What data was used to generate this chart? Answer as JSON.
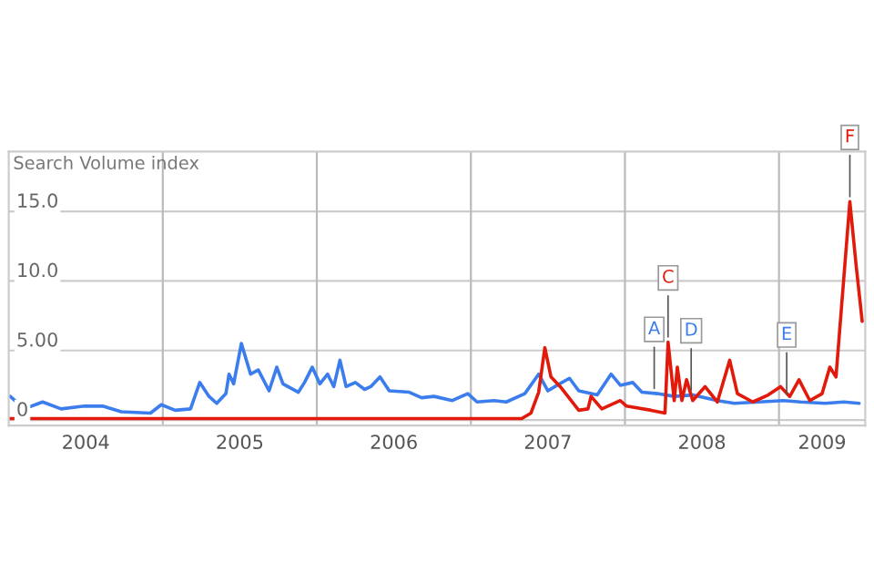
{
  "chart_data": {
    "type": "line",
    "ylabel": "Search Volume index",
    "x": [
      2004.01,
      2004.1,
      2004.22,
      2004.34,
      2004.49,
      2004.61,
      2004.73,
      2004.92,
      2004.99,
      2005.08,
      2005.18,
      2005.24,
      2005.3,
      2005.35,
      2005.41,
      2005.43,
      2005.46,
      2005.51,
      2005.57,
      2005.62,
      2005.69,
      2005.74,
      2005.78,
      2005.88,
      2005.92,
      2005.97,
      2006.02,
      2006.07,
      2006.11,
      2006.15,
      2006.19,
      2006.25,
      2006.31,
      2006.35,
      2006.41,
      2006.47,
      2006.6,
      2006.68,
      2006.76,
      2006.88,
      2006.98,
      2007.04,
      2007.15,
      2007.23,
      2007.35,
      2007.44,
      2007.5,
      2007.56,
      2007.64,
      2007.7,
      2007.82,
      2007.91,
      2007.97,
      2008.05,
      2008.11,
      2008.21,
      2008.32,
      2008.44,
      2008.6,
      2008.71,
      2008.87,
      2009.03,
      2009.14,
      2009.3,
      2009.42,
      2009.52
    ],
    "series": [
      {
        "color": "#3b7ded",
        "values": [
          1.7,
          0.8,
          1.3,
          0.8,
          1.0,
          1.0,
          0.6,
          0.5,
          1.1,
          0.7,
          0.8,
          2.7,
          1.7,
          1.2,
          1.9,
          3.3,
          2.6,
          5.5,
          3.3,
          3.6,
          2.1,
          3.8,
          2.6,
          2.0,
          2.7,
          3.8,
          2.6,
          3.3,
          2.4,
          4.3,
          2.4,
          2.7,
          2.2,
          2.4,
          3.1,
          2.1,
          2.0,
          1.6,
          1.7,
          1.4,
          1.9,
          1.3,
          1.4,
          1.3,
          1.9,
          3.3,
          2.1,
          2.5,
          3.0,
          2.1,
          1.8,
          3.3,
          2.5,
          2.7,
          2.0,
          1.9,
          1.7,
          1.8,
          1.4,
          1.2,
          1.3,
          1.4,
          1.3,
          1.2,
          1.3,
          1.2
        ]
      },
      {
        "color": "#e21a0c",
        "x": [
          2004.01,
          2006.76,
          2007.33,
          2007.39,
          2007.44,
          2007.48,
          2007.52,
          2007.58,
          2007.7,
          2007.76,
          2007.78,
          2007.85,
          2007.97,
          2008.01,
          2008.17,
          2008.26,
          2008.28,
          2008.32,
          2008.34,
          2008.37,
          2008.4,
          2008.44,
          2008.52,
          2008.6,
          2008.68,
          2008.73,
          2008.83,
          2008.93,
          2009.01,
          2009.07,
          2009.13,
          2009.2,
          2009.28,
          2009.33,
          2009.37,
          2009.46,
          2009.5,
          2009.54
        ],
        "values": [
          0.1,
          0.1,
          0.1,
          0.5,
          2.0,
          5.2,
          3.1,
          2.4,
          0.7,
          0.8,
          1.7,
          0.8,
          1.4,
          1.0,
          0.7,
          0.5,
          5.6,
          1.4,
          3.8,
          1.4,
          2.9,
          1.4,
          2.4,
          1.3,
          4.3,
          1.9,
          1.3,
          1.8,
          2.4,
          1.7,
          2.9,
          1.4,
          1.9,
          3.8,
          3.1,
          15.7,
          11.2,
          7.1
        ]
      }
    ],
    "xlim": [
      2004.0,
      2009.56
    ],
    "xticks": [
      {
        "value": 2004.5,
        "label": "2004"
      },
      {
        "value": 2005,
        "label": null
      },
      {
        "value": 2005.5,
        "label": "2005"
      },
      {
        "value": 2006,
        "label": null
      },
      {
        "value": 2006.5,
        "label": "2006"
      },
      {
        "value": 2007,
        "label": null
      },
      {
        "value": 2007.5,
        "label": "2007"
      },
      {
        "value": 2008,
        "label": null
      },
      {
        "value": 2008.5,
        "label": "2008"
      },
      {
        "value": 2009,
        "label": null
      },
      {
        "value": 2009.28,
        "label": "2009"
      }
    ],
    "ylim": [
      -0.4,
      19.3
    ],
    "yticks": [
      {
        "value": 0,
        "label": "0"
      },
      {
        "value": 5,
        "label": "5.00"
      },
      {
        "value": 10,
        "label": "10.0"
      },
      {
        "value": 15,
        "label": "15.0"
      }
    ],
    "grid": true,
    "line_style": "solid",
    "annotations": [
      {
        "text": "A",
        "x": 2008.19,
        "y": 1.9
      },
      {
        "text": "C",
        "x": 2008.28,
        "y": 5.6
      },
      {
        "text": "D",
        "x": 2008.43,
        "y": 1.8
      },
      {
        "text": "E",
        "x": 2009.05,
        "y": 1.5
      },
      {
        "text": "F",
        "x": 2009.46,
        "y": 15.7
      }
    ]
  }
}
